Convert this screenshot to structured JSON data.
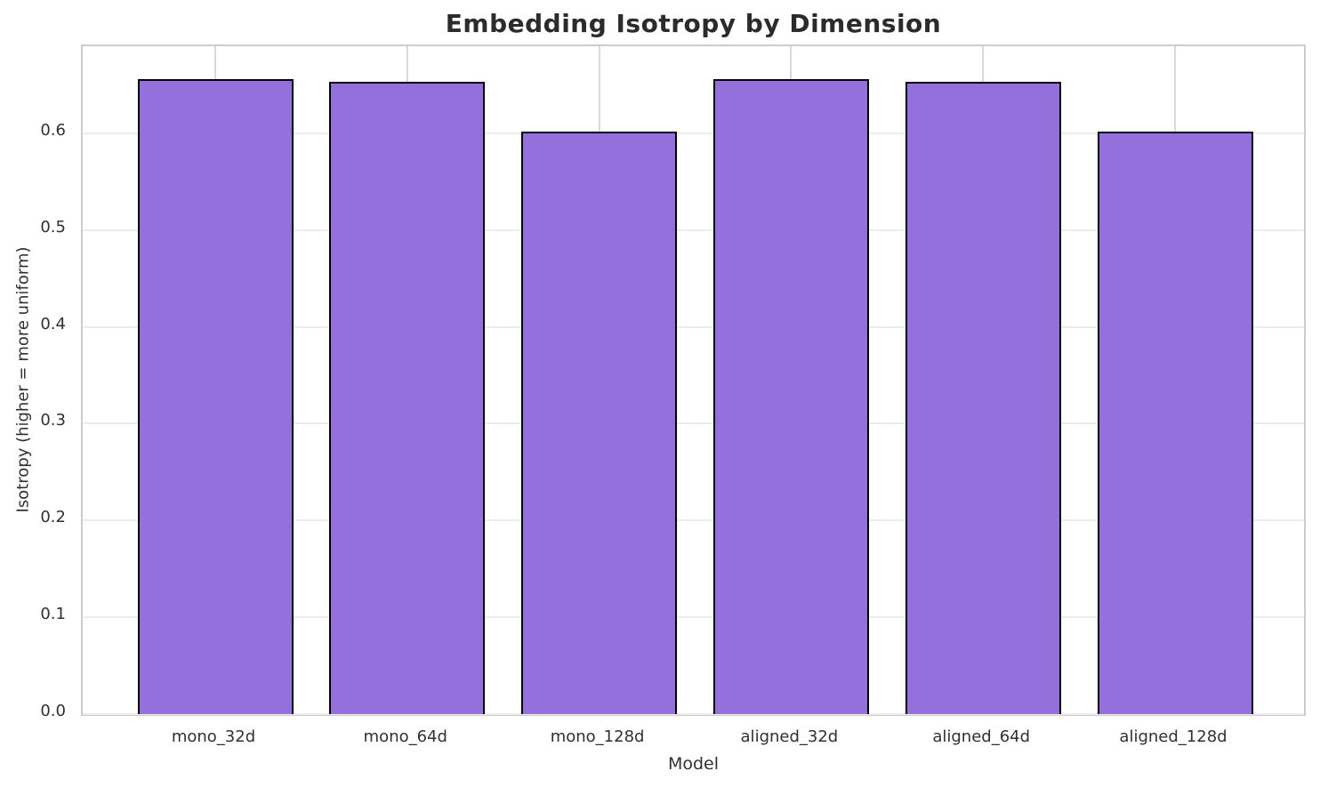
{
  "title": "Embedding Isotropy by Dimension",
  "chart_data": {
    "type": "bar",
    "title": "Embedding Isotropy by Dimension",
    "xlabel": "Model",
    "ylabel": "Isotropy (higher = more uniform)",
    "categories": [
      "mono_32d",
      "mono_64d",
      "mono_128d",
      "aligned_32d",
      "aligned_64d",
      "aligned_128d"
    ],
    "values": [
      0.656,
      0.653,
      0.602,
      0.656,
      0.653,
      0.602
    ],
    "ylim": [
      0,
      0.69
    ],
    "yticks": [
      0.0,
      0.1,
      0.2,
      0.3,
      0.4,
      0.5,
      0.6
    ],
    "ytick_labels": [
      "0.0",
      "0.1",
      "0.2",
      "0.3",
      "0.4",
      "0.5",
      "0.6"
    ],
    "grid": true,
    "legend": null,
    "bar_color": "#9370DB",
    "bar_edge_color": "#000000",
    "grid_color_horizontal": "#ececec",
    "grid_color_vertical": "#d9d9d9",
    "spine_color": "#cccccc",
    "title_color": "#2b2b2b",
    "tick_color": "#303030"
  }
}
